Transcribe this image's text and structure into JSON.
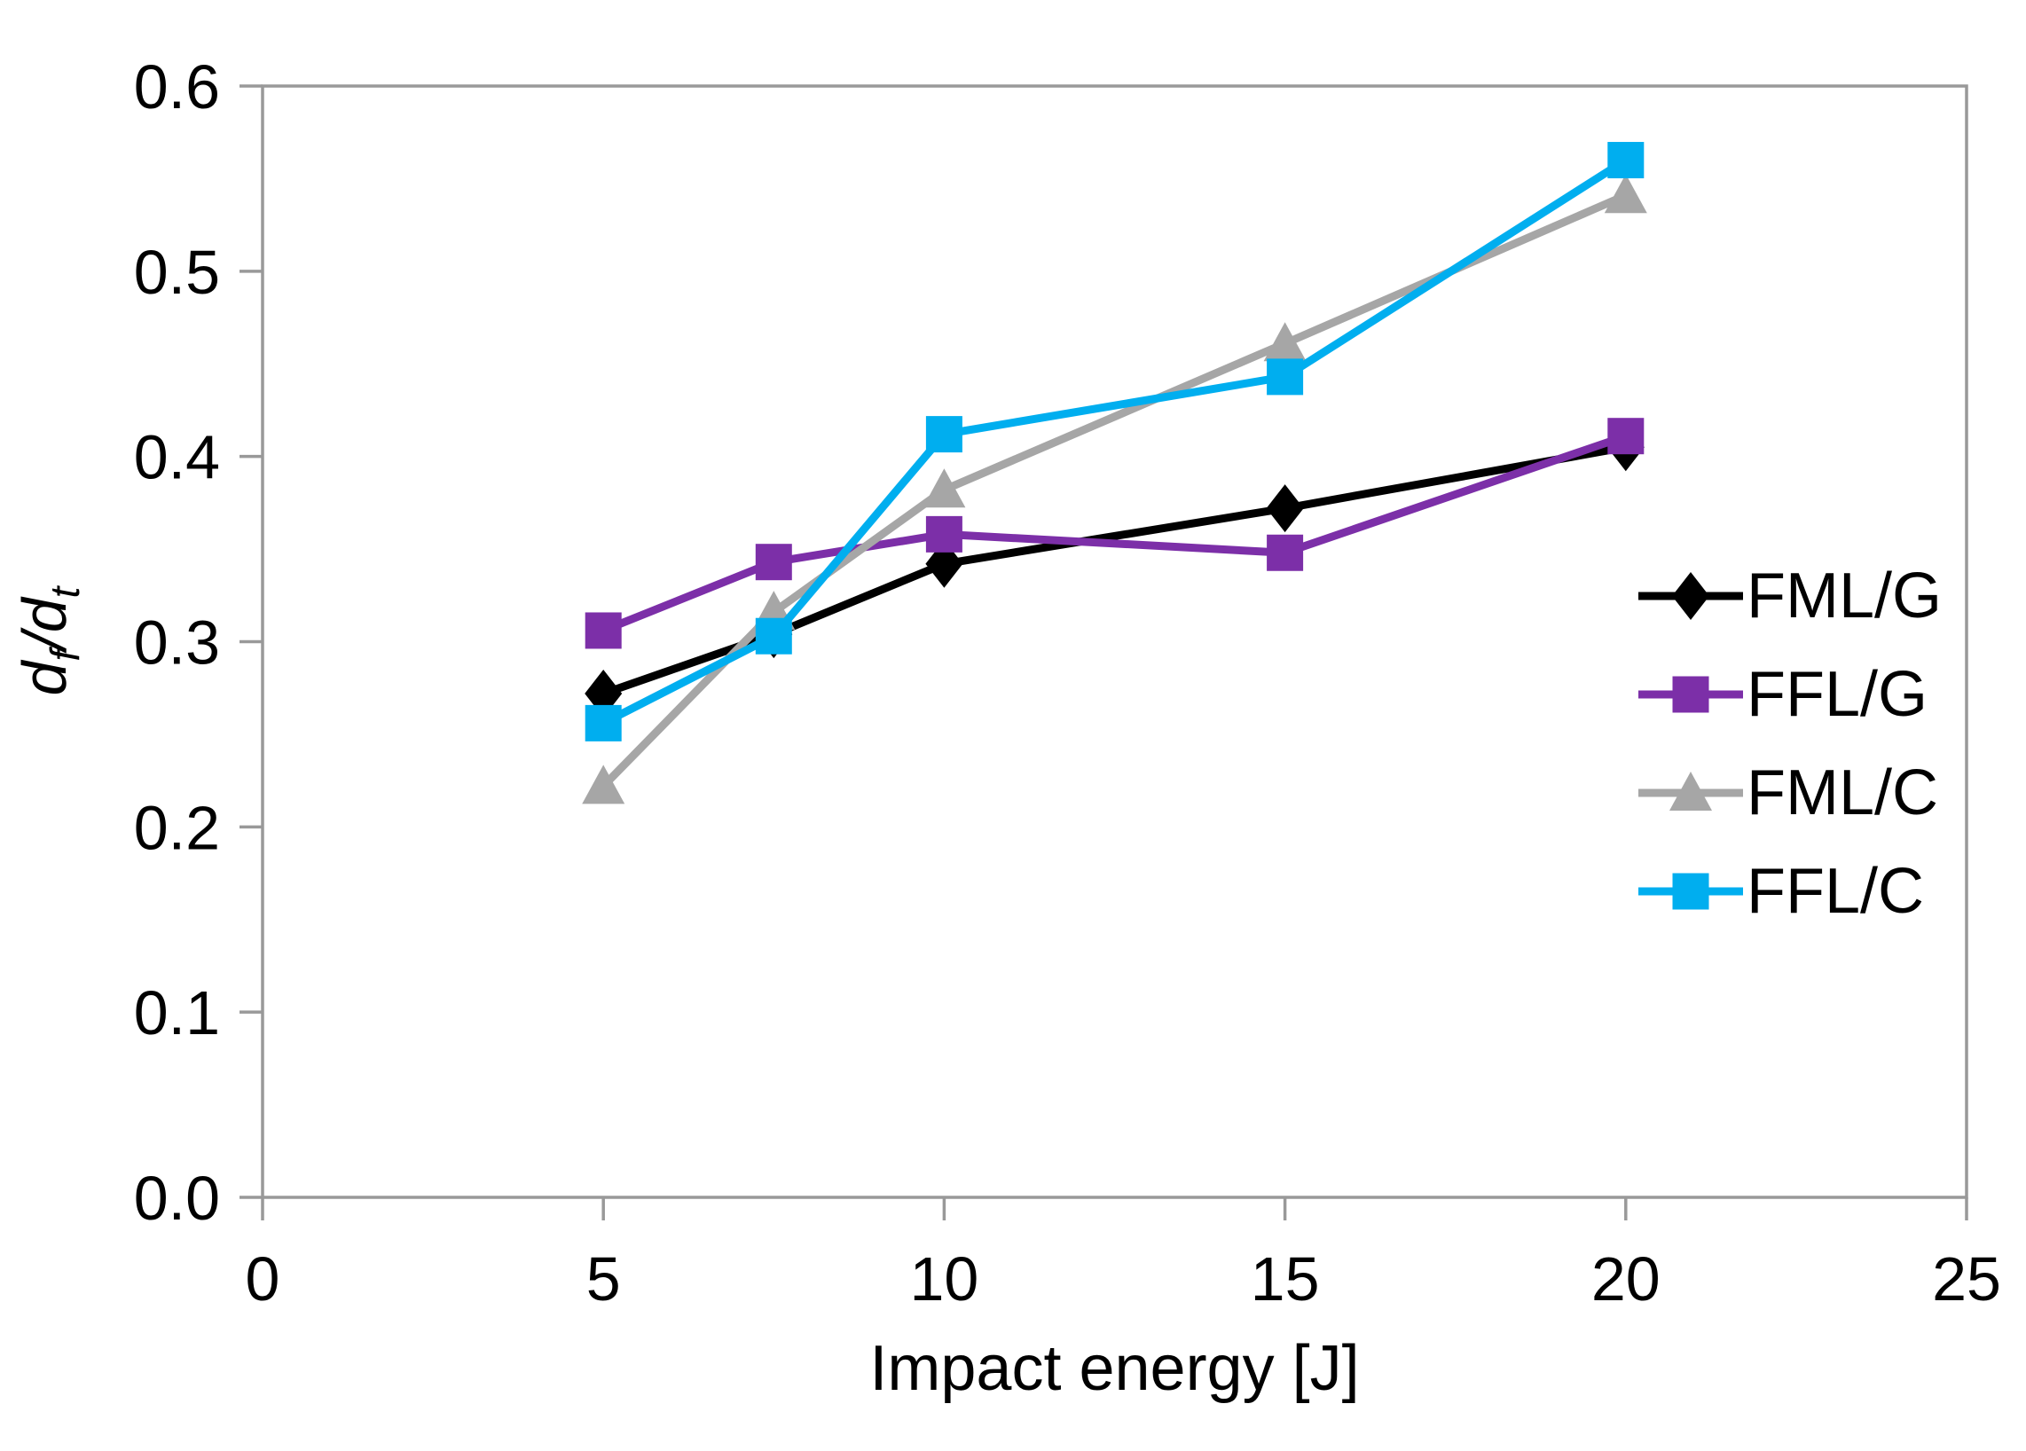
{
  "chart_data": {
    "type": "line",
    "title": "",
    "xlabel": "Impact energy [J]",
    "ylabel": "df/dt",
    "ylabel_parts": {
      "d1": "d",
      "s1": "f",
      "sep": "/",
      "d2": "d",
      "s2": "t"
    },
    "x": [
      5,
      7.5,
      10,
      15,
      20
    ],
    "xlim": [
      0,
      25
    ],
    "ylim": [
      0.0,
      0.6
    ],
    "xticks": [
      0,
      5,
      10,
      15,
      20,
      25
    ],
    "xtick_labels": [
      "0",
      "5",
      "10",
      "15",
      "20",
      "25"
    ],
    "yticks": [
      0.0,
      0.1,
      0.2,
      0.3,
      0.4,
      0.5,
      0.6
    ],
    "ytick_labels": [
      "0.0",
      "0.1",
      "0.2",
      "0.3",
      "0.4",
      "0.5",
      "0.6"
    ],
    "grid": false,
    "legend_position": "right-middle",
    "series": [
      {
        "name": "FML/G",
        "color": "#000000",
        "marker": "diamond",
        "values": [
          0.272,
          0.304,
          0.342,
          0.372,
          0.405
        ]
      },
      {
        "name": "FFL/G",
        "color": "#7C2FA8",
        "marker": "square",
        "values": [
          0.306,
          0.343,
          0.358,
          0.348,
          0.411
        ]
      },
      {
        "name": "FML/C",
        "color": "#A6A6A6",
        "marker": "triangle",
        "values": [
          0.222,
          0.316,
          0.382,
          0.461,
          0.541
        ]
      },
      {
        "name": "FFL/C",
        "color": "#00AEEF",
        "marker": "square",
        "values": [
          0.256,
          0.303,
          0.412,
          0.443,
          0.56
        ]
      }
    ],
    "axis_color": "#999999",
    "text_color": "#000000"
  }
}
